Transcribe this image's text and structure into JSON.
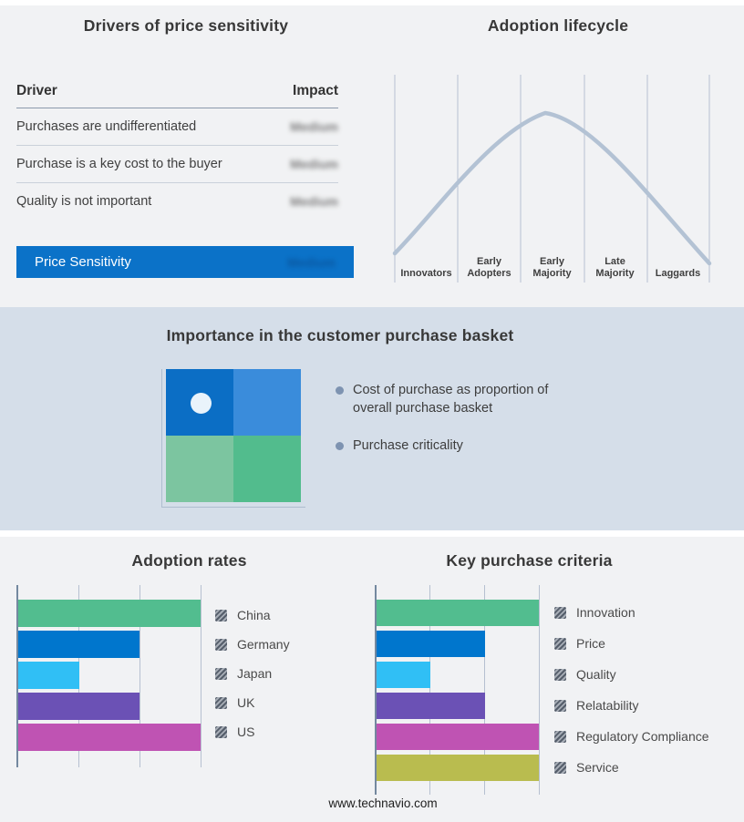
{
  "page": {
    "footer": "www.technavio.com"
  },
  "basket": {
    "title": "Importance in the customer purchase basket",
    "bullets": [
      "Cost of purchase as proportion of overall purchase basket",
      "Purchase criticality"
    ],
    "matrix_colors": {
      "top_left": "#0b6ec5",
      "top_right": "#3a8cdb",
      "bottom_left": "#7cc5a0",
      "bottom_right": "#52bc8d"
    },
    "marker_color": "#e9f3fb"
  },
  "chart_data": [
    {
      "type": "table",
      "title": "Drivers of price sensitivity",
      "columns": [
        "Driver",
        "Impact"
      ],
      "rows": [
        [
          "Purchases are undifferentiated",
          "Medium"
        ],
        [
          "Purchase is a key cost to the buyer",
          "Medium"
        ],
        [
          "Quality is not important",
          "Medium"
        ],
        [
          "Price Sensitivity",
          "Medium"
        ]
      ],
      "highlight_row": "Price Sensitivity",
      "highlight_color": "#0b72c8"
    },
    {
      "type": "line",
      "title": "Adoption lifecycle",
      "shape": "bell-curve",
      "categories": [
        "Innovators",
        "Early Adopters",
        "Early Majority",
        "Late Majority",
        "Laggards"
      ],
      "line_color": "#b3c2d4",
      "grid": "vertical-only",
      "peak_category": "Early Majority"
    },
    {
      "type": "bar",
      "title": "Adoption rates",
      "orientation": "horizontal",
      "categories": [
        "China",
        "Germany",
        "Japan",
        "UK",
        "US"
      ],
      "values": [
        3,
        2,
        1,
        2,
        3
      ],
      "xlim": [
        0,
        3
      ],
      "colors": [
        "#52bd8f",
        "#0076cd",
        "#30bff5",
        "#6b51b5",
        "#bf53b3"
      ],
      "legend_position": "right",
      "axis_tick_labels": []
    },
    {
      "type": "bar",
      "title": "Key purchase criteria",
      "orientation": "horizontal",
      "categories": [
        "Innovation",
        "Price",
        "Quality",
        "Relatability",
        "Regulatory Compliance",
        "Service"
      ],
      "values": [
        3,
        2,
        1,
        2,
        3,
        3
      ],
      "xlim": [
        0,
        3
      ],
      "colors": [
        "#52bd8f",
        "#0076cd",
        "#30bff5",
        "#6b51b5",
        "#bf53b3",
        "#b9bc4f"
      ],
      "legend_position": "right",
      "axis_tick_labels": []
    }
  ]
}
